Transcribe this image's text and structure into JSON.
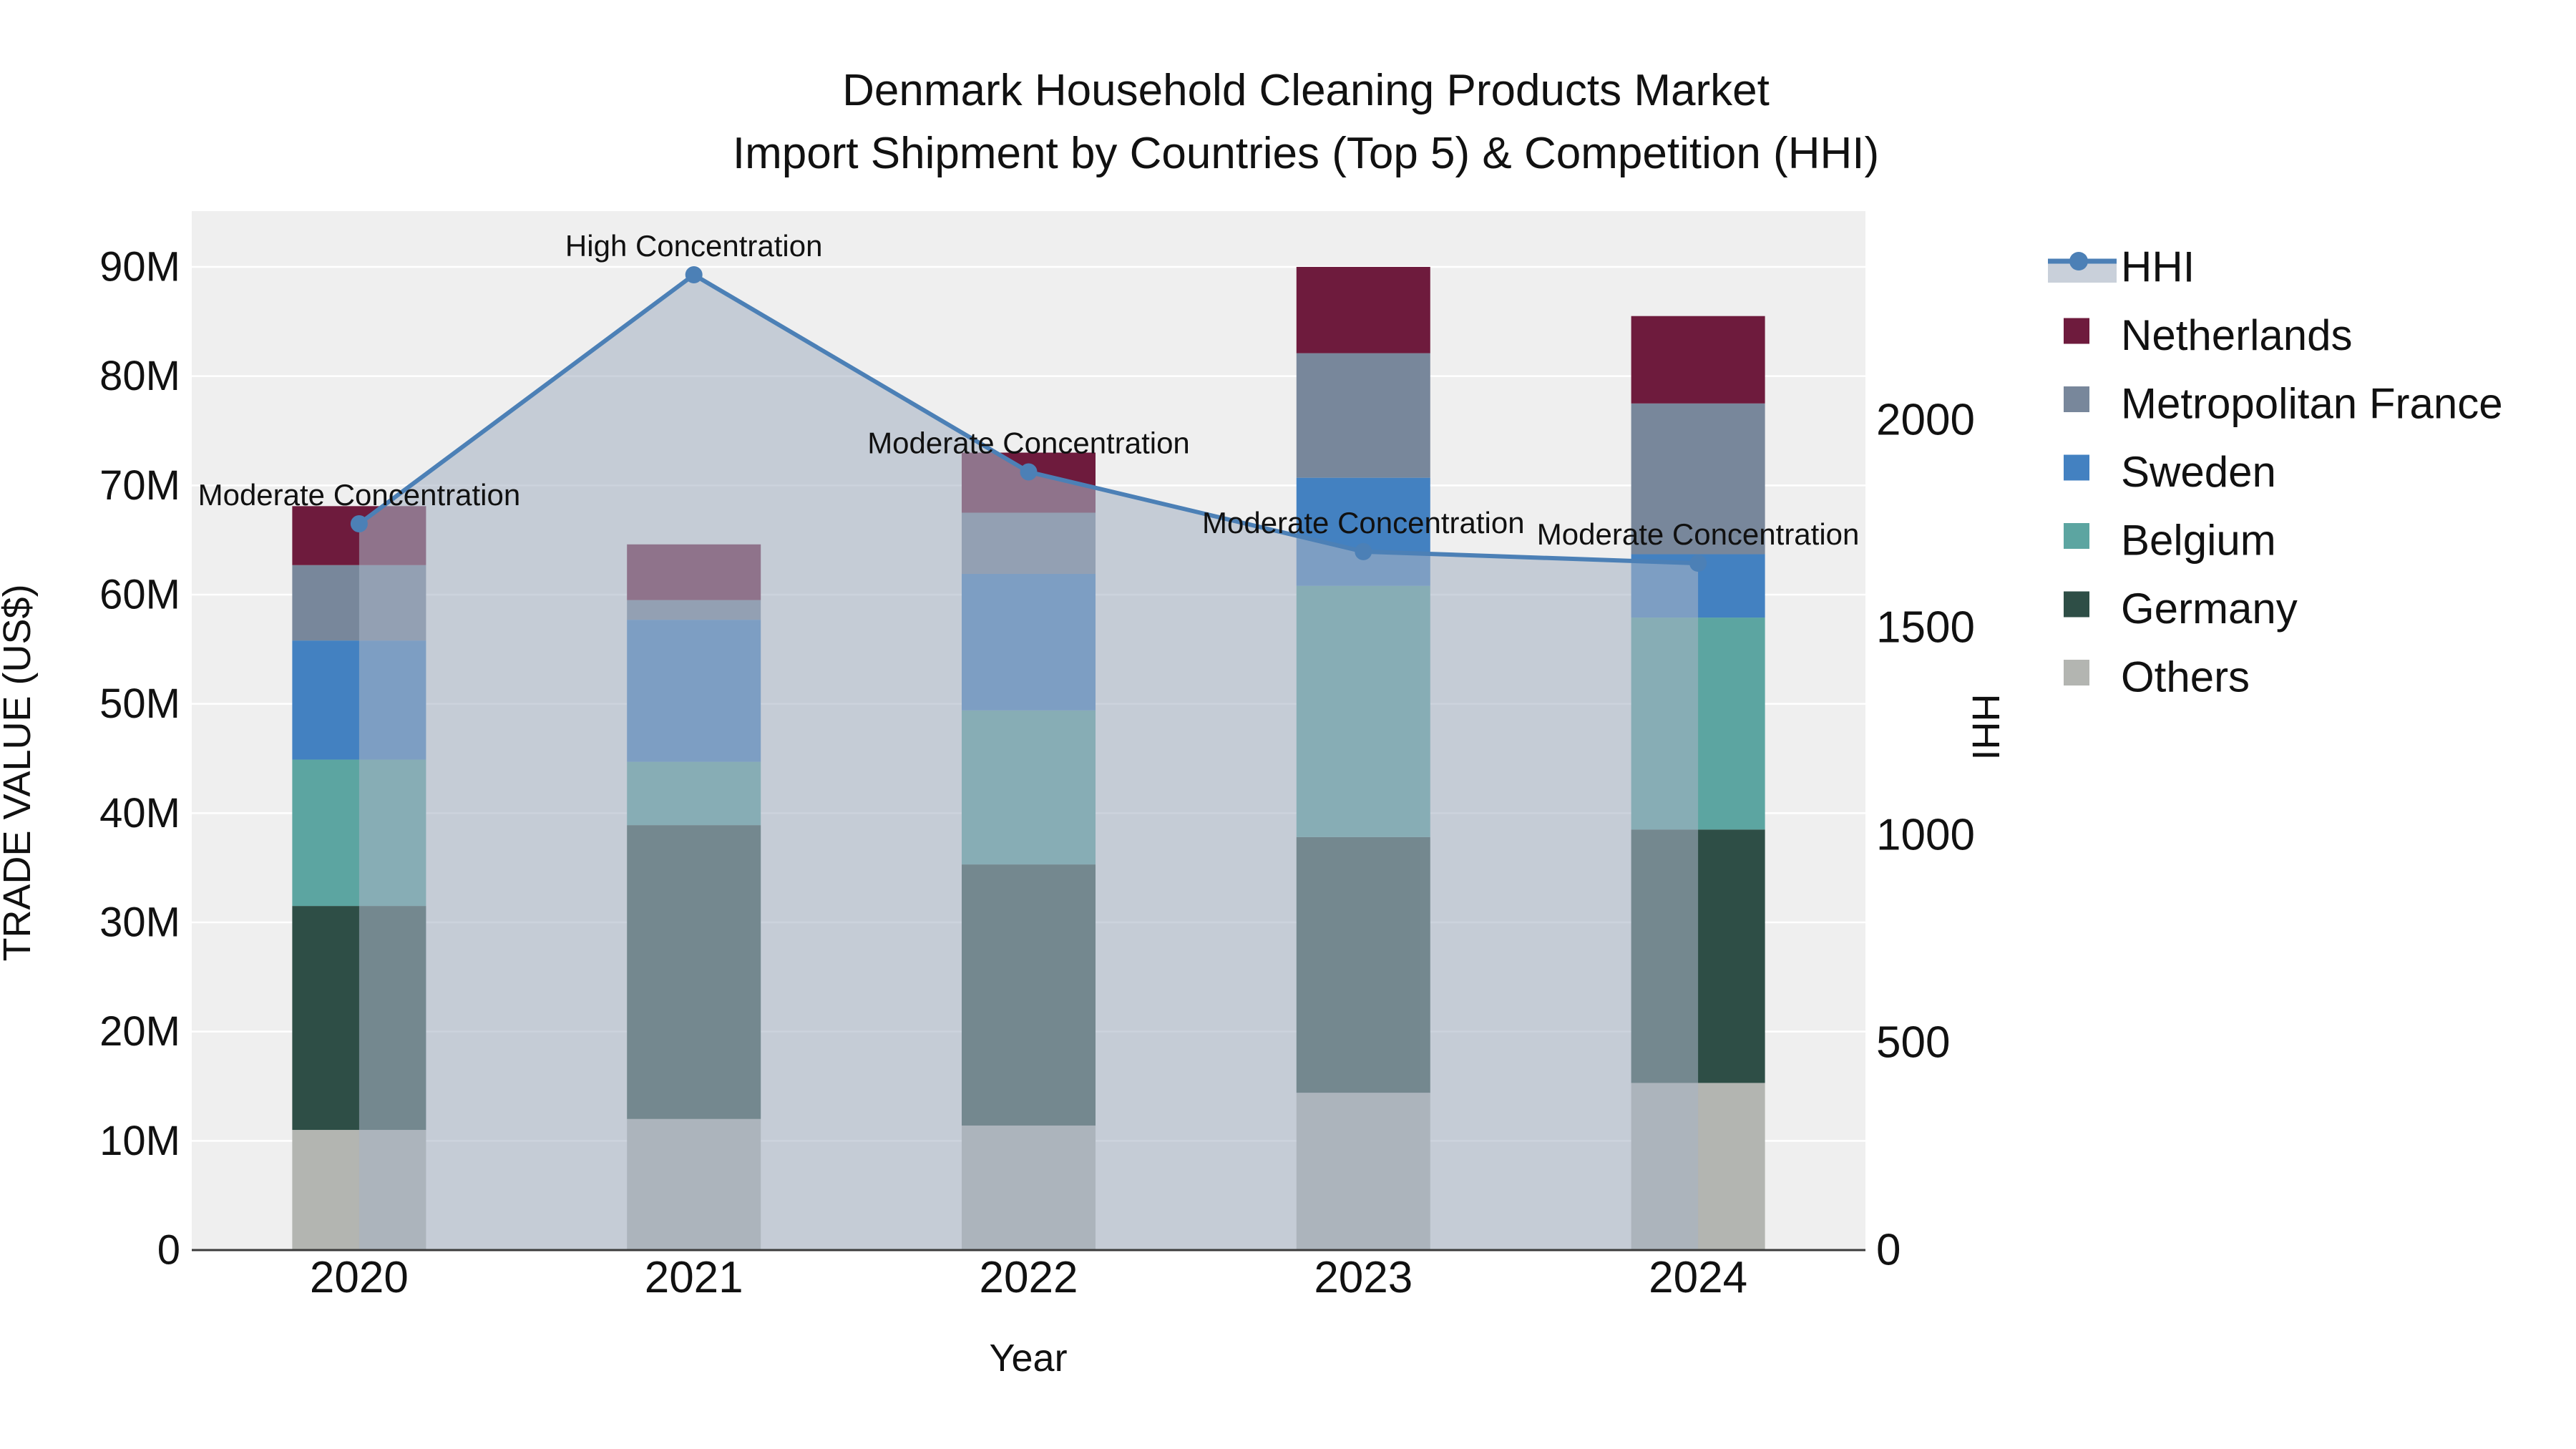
{
  "title": {
    "line1": "Denmark Household Cleaning Products Market",
    "line2": "Import Shipment by Countries (Top 5) & Competition (HHI)"
  },
  "axes": {
    "y_left_label": "TRADE VALUE (US$)",
    "y_right_label": "HHI",
    "x_label": "Year"
  },
  "chart_data": {
    "type": "bar+line",
    "title": "Denmark Household Cleaning Products Market — Import Shipment by Countries (Top 5) & Competition (HHI)",
    "categories": [
      "2020",
      "2021",
      "2022",
      "2023",
      "2024"
    ],
    "bar_unit": "million US$",
    "stack_order_bottom_to_top": [
      "Others",
      "Germany",
      "Belgium",
      "Sweden",
      "Metropolitan France",
      "Netherlands"
    ],
    "series": [
      {
        "name": "Others",
        "color": "#B3B5B1",
        "values": [
          11.0,
          12.0,
          11.4,
          14.4,
          15.3
        ]
      },
      {
        "name": "Germany",
        "color": "#2E4E46",
        "values": [
          20.5,
          26.9,
          23.9,
          23.4,
          23.2
        ]
      },
      {
        "name": "Belgium",
        "color": "#5CA5A1",
        "values": [
          13.4,
          5.8,
          14.1,
          23.0,
          19.4
        ]
      },
      {
        "name": "Sweden",
        "color": "#4381C1",
        "values": [
          10.9,
          13.0,
          12.5,
          9.9,
          5.8
        ]
      },
      {
        "name": "Metropolitan France",
        "color": "#78879B",
        "values": [
          6.9,
          1.8,
          5.6,
          11.4,
          13.8
        ]
      },
      {
        "name": "Netherlands",
        "color": "#6E1B3D",
        "values": [
          5.4,
          5.1,
          5.5,
          7.9,
          8.0
        ]
      }
    ],
    "line_series": {
      "name": "HHI",
      "color": "#4C80B6",
      "area_fill": "rgba(167,179,197,0.58)",
      "legend_band_color": "#C9D0DA",
      "values": [
        1750,
        2350,
        1875,
        1683,
        1655
      ]
    },
    "annotations": [
      "Moderate Concentration",
      "High Concentration",
      "Moderate Concentration",
      "Moderate Concentration",
      "Moderate Concentration"
    ],
    "y_left": {
      "ticks": [
        "0",
        "10M",
        "20M",
        "30M",
        "40M",
        "50M",
        "60M",
        "70M",
        "80M",
        "90M"
      ],
      "tick_values_M": [
        0,
        10,
        20,
        30,
        40,
        50,
        60,
        70,
        80,
        90
      ],
      "range_M": [
        0,
        95
      ]
    },
    "y_right": {
      "ticks": [
        "0",
        "500",
        "1000",
        "1500",
        "2000"
      ],
      "tick_values": [
        0,
        500,
        1000,
        1500,
        2000
      ],
      "range": [
        0,
        2500
      ]
    },
    "legend_order": [
      "HHI",
      "Netherlands",
      "Metropolitan France",
      "Sweden",
      "Belgium",
      "Germany",
      "Others"
    ],
    "legend_position": "right",
    "plot_bg": "#EFEFEF",
    "grid_color": "#FFFFFF",
    "axis_line_color": "#3B3B3B",
    "grid_on": true
  }
}
